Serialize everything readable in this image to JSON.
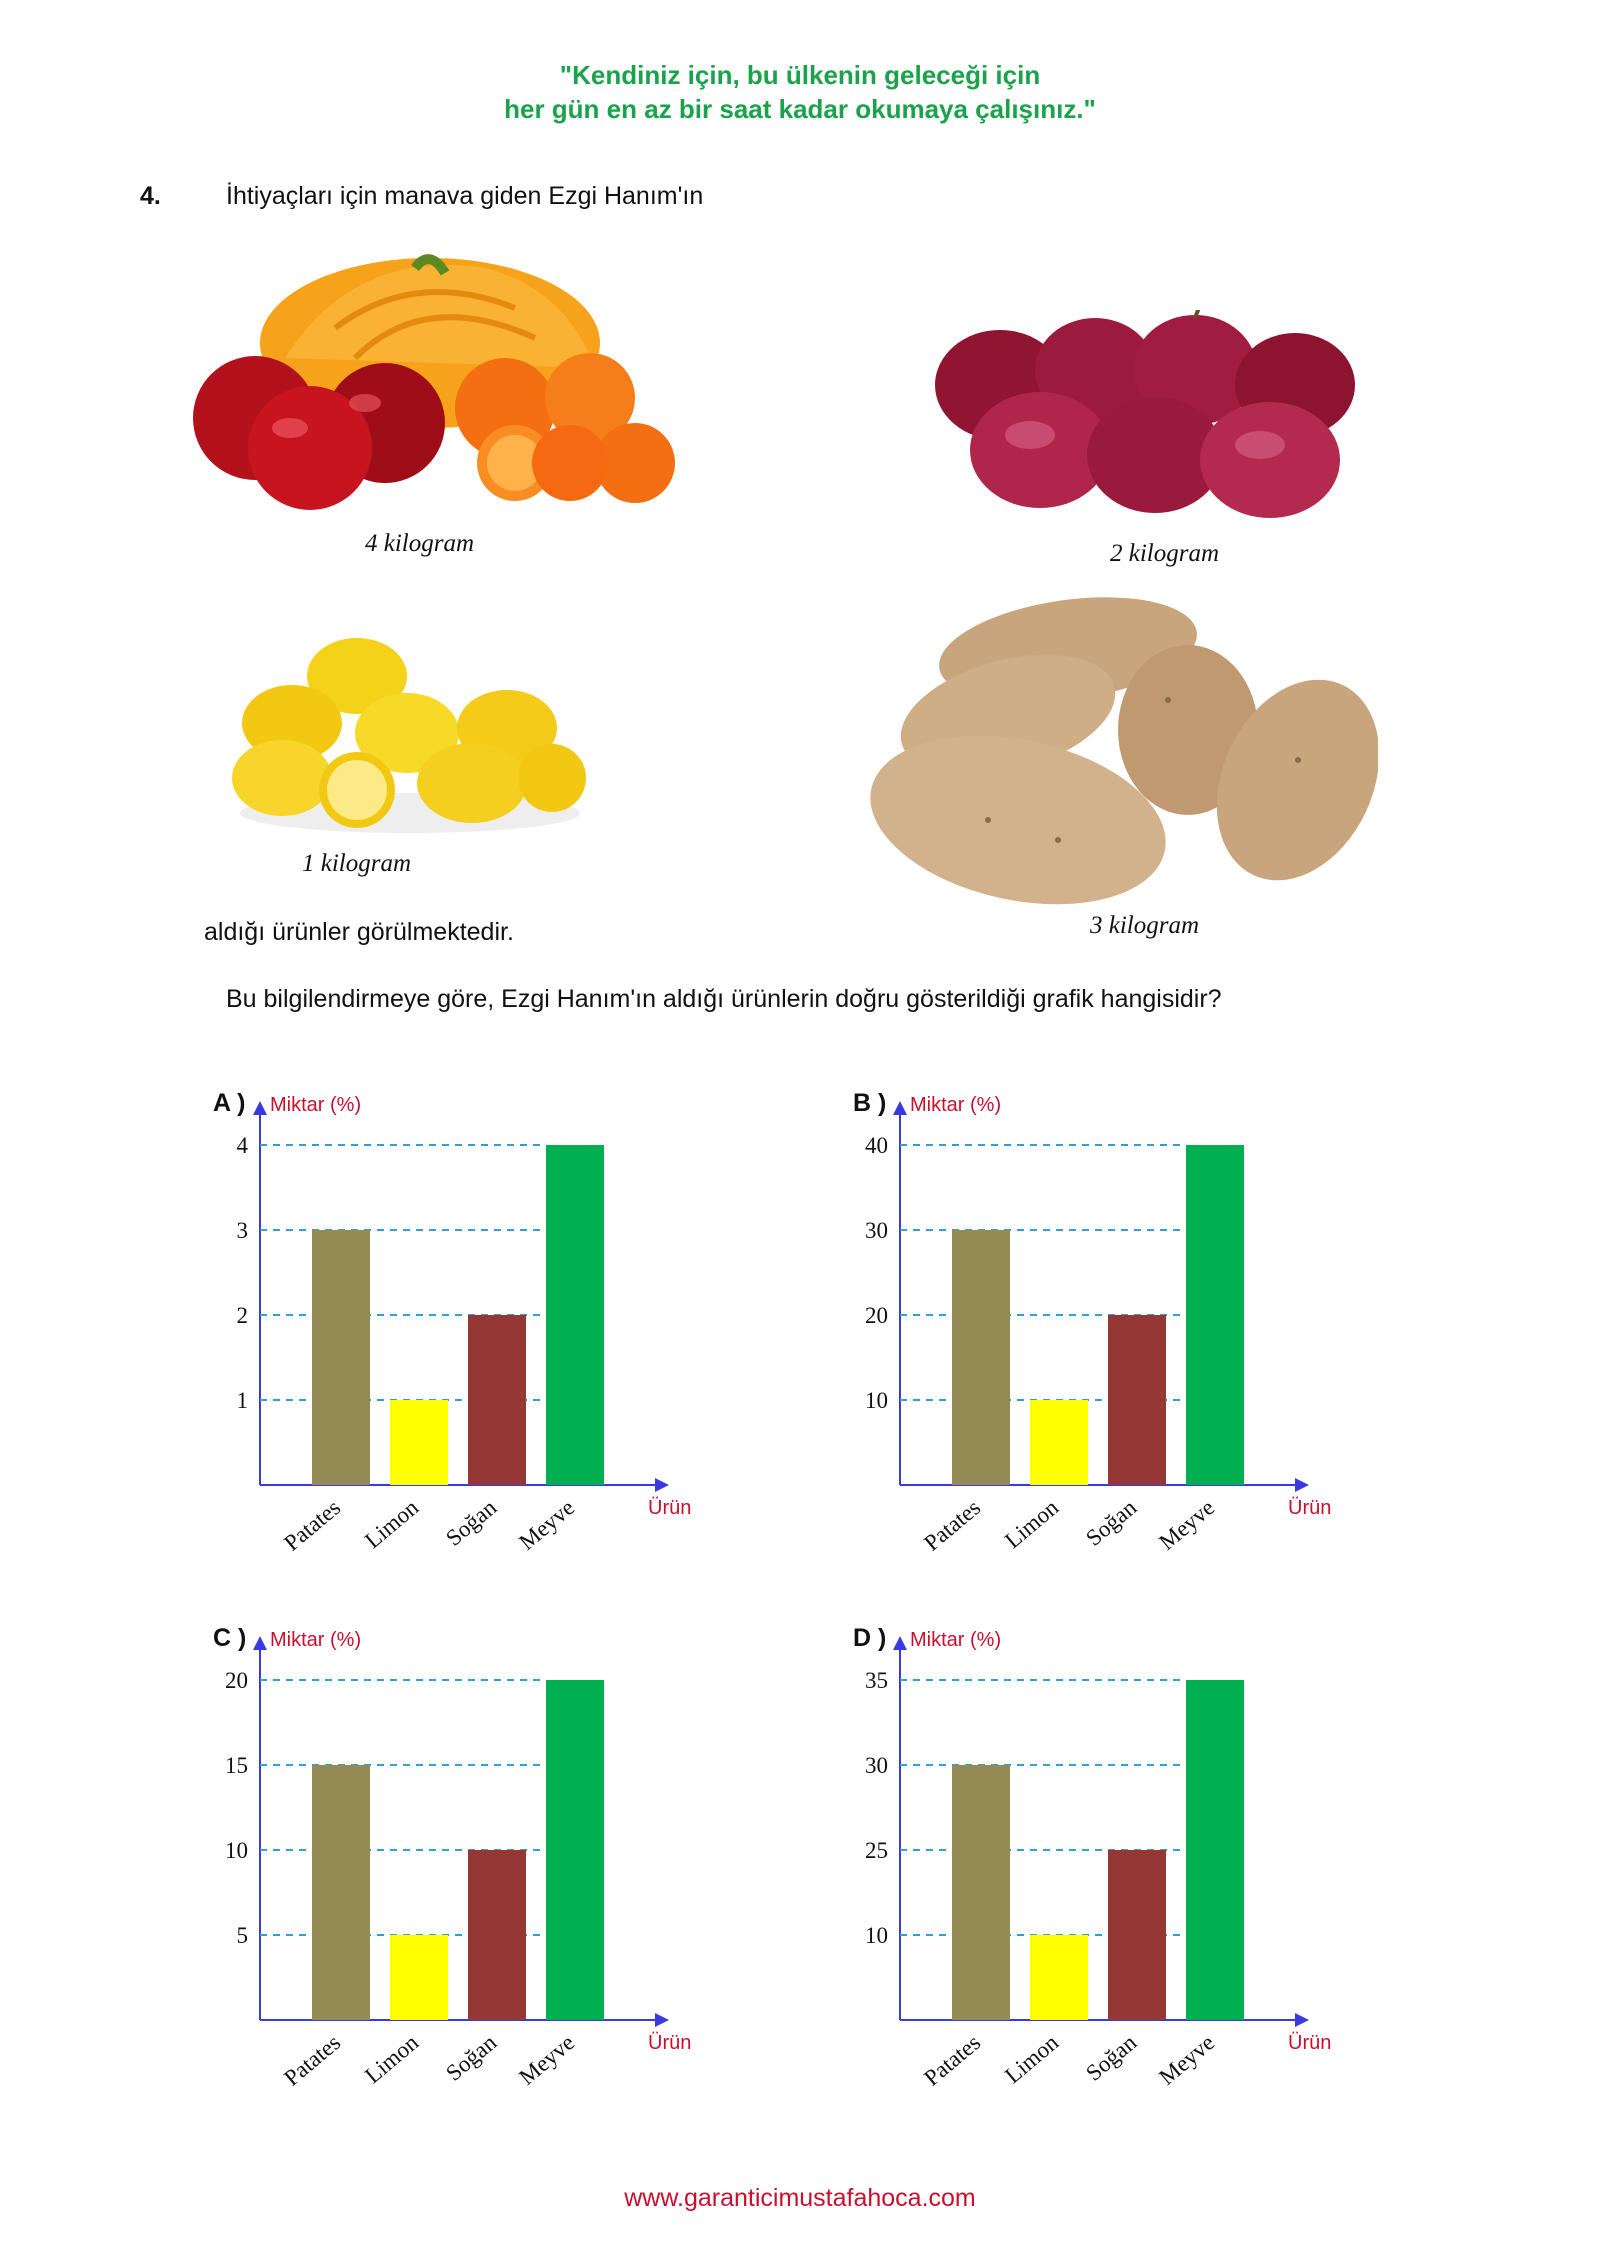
{
  "header": {
    "quote_line1": "\"Kendiniz için, bu ülkenin geleceği için",
    "quote_line2": "her gün en az bir saat kadar okumaya çalışınız.\""
  },
  "question": {
    "number": "4.",
    "intro": "İhtiyaçları için manava giden Ezgi Hanım'ın",
    "products": [
      {
        "name": "fruit-basket",
        "caption": "4 kilogram",
        "icon": "apples-oranges-bananas"
      },
      {
        "name": "onions",
        "caption": "2 kilogram",
        "icon": "red-onions"
      },
      {
        "name": "lemons",
        "caption": "1 kilogram",
        "icon": "lemons"
      },
      {
        "name": "potatoes",
        "caption": "3 kilogram",
        "icon": "potatoes"
      }
    ],
    "continuation": "aldığı ürünler görülmektedir.",
    "prompt": "Bu bilgilendirmeye göre, Ezgi Hanım'ın aldığı ürünlerin doğru gösterildiği grafik hangisidir?"
  },
  "colors": {
    "quote": "#1aa34a",
    "axis": "#3a3ae0",
    "axis_label": "#c8102e",
    "gridline": "#2fa0d8",
    "bar_patates": "#948a54",
    "bar_limon": "#ffff00",
    "bar_sogan": "#953735",
    "bar_meyve": "#00b050"
  },
  "chart_data": [
    {
      "type": "bar",
      "option": "A )",
      "ylabel": "Miktar (%)",
      "xlabel": "Ürün",
      "categories": [
        "Patates",
        "Limon",
        "Soğan",
        "Meyve"
      ],
      "values": [
        3,
        1,
        2,
        4
      ],
      "yticks": [
        1,
        2,
        3,
        4
      ],
      "grid": true
    },
    {
      "type": "bar",
      "option": "B )",
      "ylabel": "Miktar (%)",
      "xlabel": "Ürün",
      "categories": [
        "Patates",
        "Limon",
        "Soğan",
        "Meyve"
      ],
      "values": [
        30,
        10,
        20,
        40
      ],
      "yticks": [
        10,
        20,
        30,
        40
      ],
      "grid": true
    },
    {
      "type": "bar",
      "option": "C )",
      "ylabel": "Miktar (%)",
      "xlabel": "Ürün",
      "categories": [
        "Patates",
        "Limon",
        "Soğan",
        "Meyve"
      ],
      "values": [
        15,
        5,
        10,
        20
      ],
      "yticks": [
        5,
        10,
        15,
        20
      ],
      "grid": true
    },
    {
      "type": "bar",
      "option": "D )",
      "ylabel": "Miktar (%)",
      "xlabel": "Ürün",
      "categories": [
        "Patates",
        "Limon",
        "Soğan",
        "Meyve"
      ],
      "values": [
        30,
        10,
        25,
        35
      ],
      "yticks": [
        10,
        25,
        30,
        35
      ],
      "grid": true
    }
  ],
  "footer": {
    "url": "www.garanticimustafahoca.com"
  }
}
